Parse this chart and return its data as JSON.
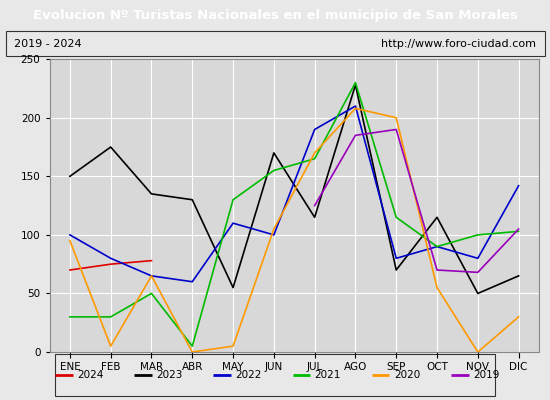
{
  "title": "Evolucion Nº Turistas Nacionales en el municipio de San Morales",
  "subtitle_left": "2019 - 2024",
  "subtitle_right": "http://www.foro-ciudad.com",
  "title_bg_color": "#4472c4",
  "title_text_color": "#ffffff",
  "months": [
    "ENE",
    "FEB",
    "MAR",
    "ABR",
    "MAY",
    "JUN",
    "JUL",
    "AGO",
    "SEP",
    "OCT",
    "NOV",
    "DIC"
  ],
  "ylim": [
    0,
    250
  ],
  "yticks": [
    0,
    50,
    100,
    150,
    200,
    250
  ],
  "series": {
    "2024": {
      "color": "#dd0000",
      "linewidth": 1.2,
      "data": [
        70,
        75,
        78,
        null,
        null,
        null,
        null,
        null,
        null,
        null,
        null,
        null
      ]
    },
    "2023": {
      "color": "#000000",
      "linewidth": 1.2,
      "data": [
        150,
        175,
        135,
        130,
        55,
        170,
        115,
        228,
        70,
        115,
        50,
        65
      ]
    },
    "2022": {
      "color": "#0000cc",
      "linewidth": 1.2,
      "data": [
        100,
        80,
        65,
        60,
        110,
        100,
        190,
        210,
        80,
        90,
        80,
        142
      ]
    },
    "2021": {
      "color": "#00bb00",
      "linewidth": 1.2,
      "data": [
        30,
        30,
        50,
        5,
        130,
        155,
        165,
        230,
        115,
        90,
        100,
        103
      ]
    },
    "2020": {
      "color": "#ff9900",
      "linewidth": 1.2,
      "data": [
        95,
        5,
        65,
        0,
        5,
        105,
        170,
        208,
        200,
        55,
        0,
        30
      ]
    },
    "2019": {
      "color": "#9900bb",
      "linewidth": 1.2,
      "data": [
        null,
        null,
        null,
        null,
        null,
        null,
        125,
        185,
        190,
        70,
        68,
        105
      ]
    }
  },
  "legend_order": [
    "2024",
    "2023",
    "2022",
    "2021",
    "2020",
    "2019"
  ],
  "bg_color": "#e8e8e8",
  "plot_bg_color": "#d8d8d8",
  "grid_color": "#ffffff"
}
